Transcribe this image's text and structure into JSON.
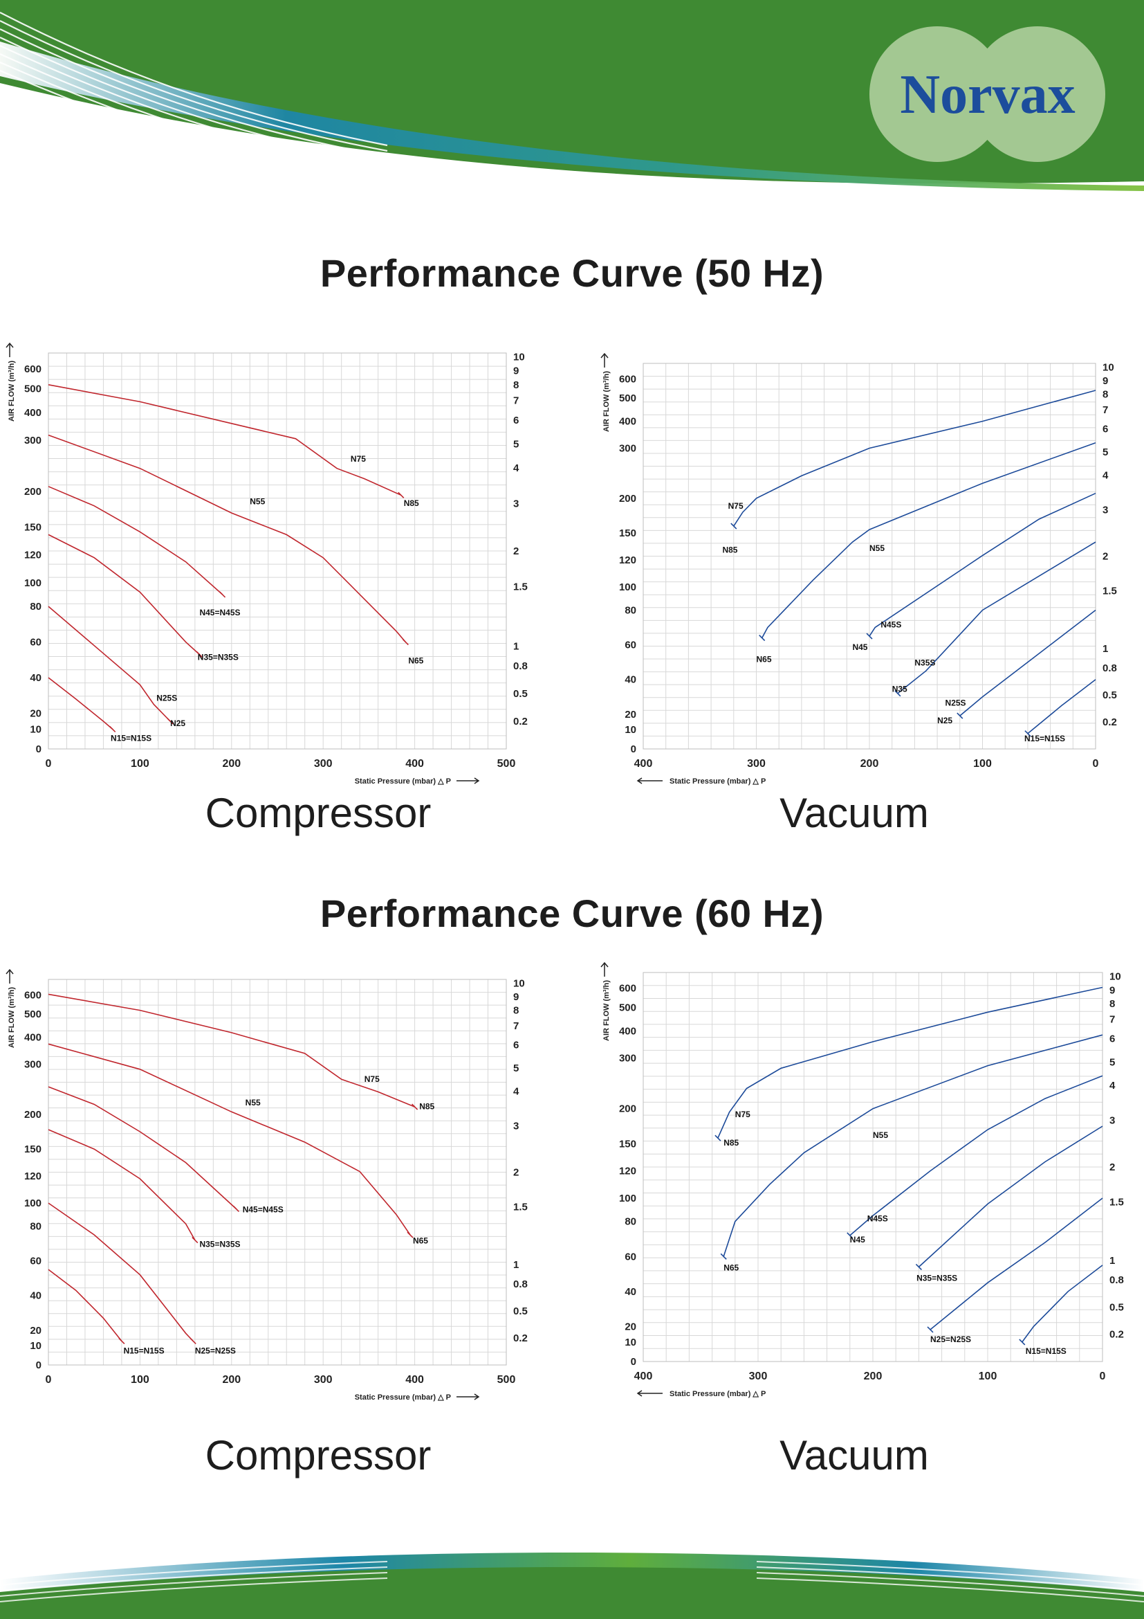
{
  "brand": {
    "name": "Norvax",
    "colors": {
      "green": "#3f8a33",
      "teal": "#1d86a8",
      "circle": "#a3c892",
      "logo_text": "#1c4d9c"
    }
  },
  "sections": [
    {
      "title": "Performance Curve (50 Hz)"
    },
    {
      "title": "Performance Curve (60 Hz)"
    }
  ],
  "chart_data": [
    {
      "id": "c50",
      "type": "line",
      "caption": "Compressor",
      "direction": "compressor",
      "color": "#c0262d",
      "ylabel": "AIR FLOW (m³/h)",
      "xlabel": "Static Pressure (mbar) △ P",
      "xlim": [
        0,
        500
      ],
      "xticks": [
        0,
        100,
        200,
        300,
        400,
        500
      ],
      "ylim": [
        0,
        600
      ],
      "yticks": [
        0,
        10,
        20,
        40,
        60,
        80,
        100,
        120,
        150,
        200,
        300,
        400,
        500,
        600
      ],
      "y2ticks": [
        "10",
        "9",
        "8",
        "7",
        "6",
        "5",
        "4",
        "3",
        "2",
        "1.5",
        "1",
        "0.8",
        "0.5",
        "0.2"
      ],
      "grid": true,
      "series": [
        {
          "x": [
            0,
            100,
            200,
            270,
            315,
            345,
            385
          ],
          "y": [
            520,
            445,
            360,
            305,
            245,
            225,
            195
          ],
          "labels": [
            {
              "text": "N75",
              "x": 330,
              "y": 258
            },
            {
              "text": "N85",
              "x": 388,
              "y": 180
            }
          ]
        },
        {
          "x": [
            0,
            100,
            200,
            260,
            300,
            340,
            380,
            390
          ],
          "y": [
            318,
            245,
            170,
            142,
            118,
            90,
            66,
            60
          ],
          "labels": [
            {
              "text": "N55",
              "x": 220,
              "y": 182
            },
            {
              "text": "N65",
              "x": 393,
              "y": 48
            }
          ]
        },
        {
          "x": [
            0,
            50,
            100,
            150,
            190
          ],
          "y": [
            210,
            180,
            145,
            115,
            90
          ],
          "labels": [
            {
              "text": "N45=N45S",
              "x": 165,
              "y": 75
            }
          ]
        },
        {
          "x": [
            0,
            50,
            100,
            150,
            165
          ],
          "y": [
            142,
            118,
            92,
            60,
            53
          ],
          "labels": [
            {
              "text": "N35=N35S",
              "x": 163,
              "y": 50
            }
          ]
        },
        {
          "x": [
            0,
            50,
            100,
            115,
            133
          ],
          "y": [
            80,
            58,
            36,
            25,
            15
          ],
          "labels": [
            {
              "text": "N25S",
              "x": 118,
              "y": 27
            },
            {
              "text": "N25",
              "x": 133,
              "y": 12
            }
          ]
        },
        {
          "x": [
            0,
            30,
            60,
            70
          ],
          "y": [
            40,
            28,
            15,
            10
          ],
          "labels": [
            {
              "text": "N15=N15S",
              "x": 68,
              "y": 4
            }
          ]
        }
      ]
    },
    {
      "id": "v50",
      "type": "line",
      "caption": "Vacuum",
      "direction": "vacuum",
      "color": "#1c4a99",
      "ylabel": "AIR FLOW (m³/h)",
      "xlabel": "Static Pressure (mbar) △ P",
      "xlim": [
        400,
        0
      ],
      "xticks": [
        400,
        300,
        200,
        100,
        0
      ],
      "ylim": [
        0,
        600
      ],
      "yticks": [
        0,
        10,
        20,
        40,
        60,
        80,
        100,
        120,
        150,
        200,
        300,
        400,
        500,
        600
      ],
      "y2ticks": [
        "10",
        "9",
        "8",
        "7",
        "6",
        "5",
        "4",
        "3",
        "2",
        "1.5",
        "1",
        "0.8",
        "0.5",
        "0.2"
      ],
      "grid": true,
      "series": [
        {
          "x": [
            0,
            100,
            200,
            260,
            300,
            312,
            320
          ],
          "y": [
            540,
            400,
            300,
            245,
            200,
            180,
            160
          ],
          "labels": [
            {
              "text": "N75",
              "x": 325,
              "y": 185
            },
            {
              "text": "N85",
              "x": 330,
              "y": 128
            }
          ]
        },
        {
          "x": [
            0,
            100,
            200,
            215,
            250,
            290,
            295
          ],
          "y": [
            320,
            230,
            155,
            140,
            105,
            70,
            64
          ],
          "labels": [
            {
              "text": "N55",
              "x": 200,
              "y": 130
            },
            {
              "text": "N65",
              "x": 300,
              "y": 50
            }
          ]
        },
        {
          "x": [
            0,
            50,
            100,
            195,
            200
          ],
          "y": [
            210,
            170,
            125,
            70,
            65
          ],
          "labels": [
            {
              "text": "N45S",
              "x": 190,
              "y": 70
            },
            {
              "text": "N45",
              "x": 215,
              "y": 57
            }
          ]
        },
        {
          "x": [
            0,
            100,
            150,
            175
          ],
          "y": [
            140,
            80,
            45,
            32
          ],
          "labels": [
            {
              "text": "N35S",
              "x": 160,
              "y": 48
            },
            {
              "text": "N35",
              "x": 180,
              "y": 33
            }
          ]
        },
        {
          "x": [
            0,
            50,
            100,
            120
          ],
          "y": [
            80,
            55,
            30,
            19
          ],
          "labels": [
            {
              "text": "N25S",
              "x": 133,
              "y": 25
            },
            {
              "text": "N25",
              "x": 140,
              "y": 14
            }
          ]
        },
        {
          "x": [
            0,
            30,
            60
          ],
          "y": [
            40,
            25,
            8
          ],
          "labels": [
            {
              "text": "N15=N15S",
              "x": 63,
              "y": 4
            }
          ]
        }
      ]
    },
    {
      "id": "c60",
      "type": "line",
      "caption": "Compressor",
      "direction": "compressor",
      "color": "#c0262d",
      "ylabel": "AIR FLOW (m³/h)",
      "xlabel": "Static Pressure (mbar) △ P",
      "xlim": [
        0,
        500
      ],
      "xticks": [
        0,
        100,
        200,
        300,
        400,
        500
      ],
      "ylim": [
        0,
        600
      ],
      "yticks": [
        0,
        10,
        20,
        40,
        60,
        80,
        100,
        120,
        150,
        200,
        300,
        400,
        500,
        600
      ],
      "y2ticks": [
        "10",
        "9",
        "8",
        "7",
        "6",
        "5",
        "4",
        "3",
        "2",
        "1.5",
        "1",
        "0.8",
        "0.5",
        "0.2"
      ],
      "grid": true,
      "series": [
        {
          "x": [
            0,
            100,
            200,
            280,
            320,
            360,
            400
          ],
          "y": [
            620,
            520,
            420,
            340,
            270,
            245,
            215
          ],
          "labels": [
            {
              "text": "N75",
              "x": 345,
              "y": 265
            },
            {
              "text": "N85",
              "x": 405,
              "y": 210
            }
          ]
        },
        {
          "x": [
            0,
            100,
            200,
            280,
            340,
            380,
            395
          ],
          "y": [
            375,
            290,
            205,
            160,
            125,
            90,
            75
          ],
          "labels": [
            {
              "text": "N55",
              "x": 215,
              "y": 218
            },
            {
              "text": "N65",
              "x": 398,
              "y": 70
            }
          ]
        },
        {
          "x": [
            0,
            50,
            100,
            150,
            205
          ],
          "y": [
            255,
            220,
            175,
            135,
            95
          ],
          "labels": [
            {
              "text": "N45=N45S",
              "x": 212,
              "y": 92
            }
          ]
        },
        {
          "x": [
            0,
            50,
            100,
            150,
            160
          ],
          "y": [
            178,
            150,
            118,
            82,
            72
          ],
          "labels": [
            {
              "text": "N35=N35S",
              "x": 165,
              "y": 68
            }
          ]
        },
        {
          "x": [
            0,
            50,
            100,
            150,
            158
          ],
          "y": [
            100,
            75,
            52,
            18,
            13
          ],
          "labels": [
            {
              "text": "N25=N25S",
              "x": 160,
              "y": 6
            }
          ]
        },
        {
          "x": [
            0,
            30,
            60,
            80
          ],
          "y": [
            55,
            43,
            27,
            13
          ],
          "labels": [
            {
              "text": "N15=N15S",
              "x": 82,
              "y": 6
            }
          ]
        }
      ]
    },
    {
      "id": "v60",
      "type": "line",
      "caption": "Vacuum",
      "direction": "vacuum",
      "color": "#1c4a99",
      "ylabel": "AIR FLOW (m³/h)",
      "xlabel": "Static Pressure (mbar) △ P",
      "xlim": [
        400,
        0
      ],
      "xticks": [
        400,
        300,
        200,
        100,
        0
      ],
      "ylim": [
        0,
        600
      ],
      "yticks": [
        0,
        10,
        20,
        40,
        60,
        80,
        100,
        120,
        150,
        200,
        300,
        400,
        500,
        600
      ],
      "y2ticks": [
        "10",
        "9",
        "8",
        "7",
        "6",
        "5",
        "4",
        "3",
        "2",
        "1.5",
        "1",
        "0.8",
        "0.5",
        "0.2"
      ],
      "grid": true,
      "series": [
        {
          "x": [
            0,
            100,
            200,
            280,
            310,
            325,
            335
          ],
          "y": [
            620,
            480,
            360,
            280,
            240,
            195,
            158
          ],
          "labels": [
            {
              "text": "N75",
              "x": 320,
              "y": 188
            },
            {
              "text": "N85",
              "x": 330,
              "y": 148
            }
          ]
        },
        {
          "x": [
            0,
            100,
            200,
            260,
            290,
            320,
            330
          ],
          "y": [
            385,
            285,
            200,
            140,
            110,
            80,
            60
          ],
          "labels": [
            {
              "text": "N55",
              "x": 200,
              "y": 158
            },
            {
              "text": "N65",
              "x": 330,
              "y": 52
            }
          ]
        },
        {
          "x": [
            0,
            50,
            100,
            150,
            200,
            220
          ],
          "y": [
            265,
            220,
            170,
            120,
            85,
            72
          ],
          "labels": [
            {
              "text": "N45S",
              "x": 205,
              "y": 80
            },
            {
              "text": "N45",
              "x": 220,
              "y": 68
            }
          ]
        },
        {
          "x": [
            0,
            50,
            100,
            160
          ],
          "y": [
            175,
            130,
            95,
            54
          ],
          "labels": [
            {
              "text": "N35=N35S",
              "x": 162,
              "y": 46
            }
          ]
        },
        {
          "x": [
            0,
            50,
            100,
            150
          ],
          "y": [
            100,
            68,
            45,
            18
          ],
          "labels": [
            {
              "text": "N25=N25S",
              "x": 150,
              "y": 10
            }
          ]
        },
        {
          "x": [
            0,
            30,
            60,
            70
          ],
          "y": [
            55,
            40,
            20,
            10
          ],
          "labels": [
            {
              "text": "N15=N15S",
              "x": 67,
              "y": 4
            }
          ]
        }
      ]
    }
  ]
}
